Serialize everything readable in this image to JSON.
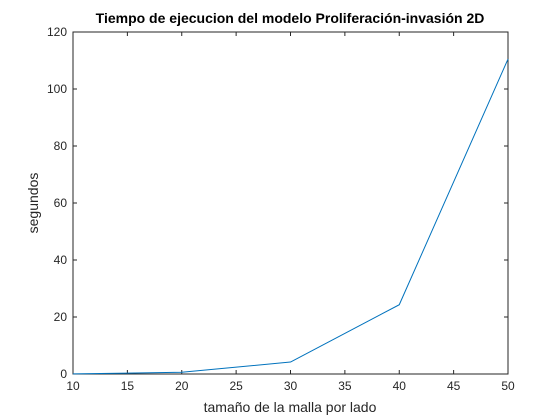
{
  "chart_data": {
    "type": "line",
    "title": "Tiempo de ejecucion del modelo Proliferación-invasión 2D",
    "xlabel": "tamaño de la malla por lado",
    "ylabel": "segundos",
    "xlim": [
      10,
      50
    ],
    "ylim": [
      0,
      120
    ],
    "xticks": [
      10,
      15,
      20,
      25,
      30,
      35,
      40,
      45,
      50
    ],
    "yticks": [
      0,
      20,
      40,
      60,
      80,
      100,
      120
    ],
    "grid": false,
    "series": [
      {
        "color": "#0072bd",
        "x": [
          10,
          20,
          30,
          40,
          50
        ],
        "y": [
          0.05,
          0.6,
          4.2,
          24.3,
          110.5
        ]
      }
    ]
  },
  "colors": {
    "axis": "#262626",
    "background": "#ffffff"
  }
}
